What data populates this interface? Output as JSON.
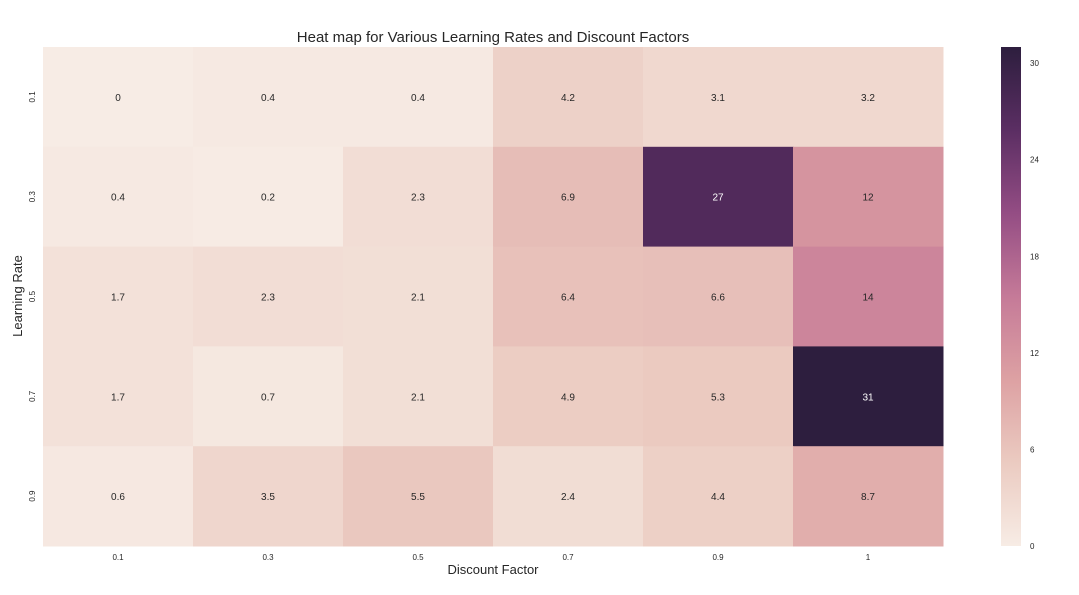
{
  "chart_data": {
    "type": "heatmap",
    "title": "Heat map for Various Learning Rates and Discount Factors",
    "xlabel": "Discount Factor",
    "ylabel": "Learning Rate",
    "x_categories": [
      "0.1",
      "0.3",
      "0.5",
      "0.7",
      "0.9",
      "1"
    ],
    "y_categories": [
      "0.1",
      "0.3",
      "0.5",
      "0.7",
      "0.9"
    ],
    "values": [
      [
        0,
        0.4,
        0.4,
        4.2,
        3.1,
        3.2
      ],
      [
        0.4,
        0.2,
        2.3,
        6.9,
        27,
        12
      ],
      [
        1.7,
        2.3,
        2.1,
        6.4,
        6.6,
        14
      ],
      [
        1.7,
        0.7,
        2.1,
        4.9,
        5.3,
        31
      ],
      [
        0.6,
        3.5,
        5.5,
        2.4,
        4.4,
        8.7
      ]
    ],
    "cell_labels": [
      [
        "0",
        "0.4",
        "0.4",
        "4.2",
        "3.1",
        "3.2"
      ],
      [
        "0.4",
        "0.2",
        "2.3",
        "6.9",
        "27",
        "12"
      ],
      [
        "1.7",
        "2.3",
        "2.1",
        "6.4",
        "6.6",
        "14"
      ],
      [
        "1.7",
        "0.7",
        "2.1",
        "4.9",
        "5.3",
        "31"
      ],
      [
        "0.6",
        "3.5",
        "5.5",
        "2.4",
        "4.4",
        "8.7"
      ]
    ],
    "colorbar": {
      "vmin": 0,
      "vmax": 31,
      "ticks": [
        0,
        6,
        12,
        18,
        24,
        30
      ],
      "tick_labels": [
        "0",
        "6",
        "12",
        "18",
        "24",
        "30"
      ]
    },
    "colormap": [
      "#f7ece5",
      "#ebcbc1",
      "#dda1a3",
      "#c57a98",
      "#944d84",
      "#5b2e63",
      "#2d1e3e"
    ],
    "annotation_colors": {
      "dark": "#262626",
      "light": "#ffffff"
    },
    "grid": false
  }
}
